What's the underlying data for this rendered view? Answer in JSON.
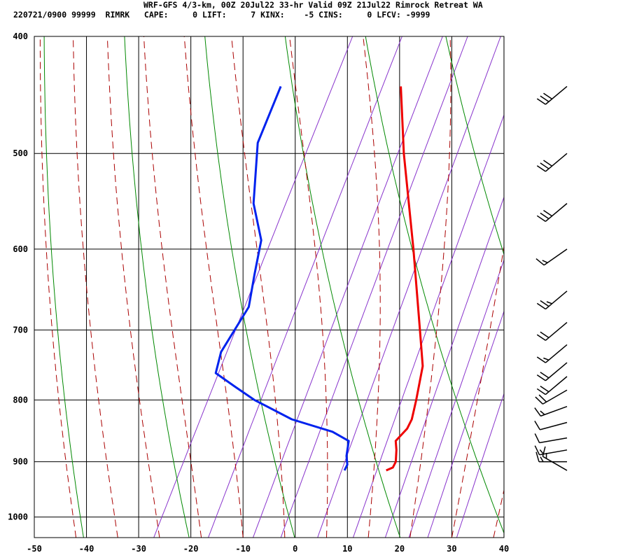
{
  "header": {
    "line1": "WRF-GFS 4/3-km, 00Z 20Jul22 33-hr Valid 09Z 21Jul22 Rimrock Retreat WA",
    "line2": "220721/0900 99999  RIMRK   CAPE:     0 LIFT:     7 KINX:    -5 CINS:     0 LFCV: -9999"
  },
  "colors": {
    "temperature": "#ee0000",
    "dewpoint": "#0022ee",
    "dry_adiabat": "#008800",
    "moist_adiabat": "#aa0000",
    "mixing_ratio": "#8833cc",
    "grid": "#000000",
    "barb": "#000000"
  },
  "chart_data": {
    "type": "skew-t",
    "x_ticks": [
      "-50",
      "-40",
      "-30",
      "-20",
      "-10",
      "0",
      "10",
      "20",
      "30",
      "40"
    ],
    "y_ticks": [
      "400",
      "500",
      "600",
      "700",
      "800",
      "900",
      "1000"
    ],
    "xlim": [
      -50,
      40
    ],
    "ylim": [
      1040,
      400
    ],
    "pressure_scale": "log",
    "grid": true,
    "series": [
      {
        "key": "temperature",
        "points": [
          [
            440,
            -23
          ],
          [
            500,
            -16
          ],
          [
            600,
            -5
          ],
          [
            700,
            4
          ],
          [
            750,
            8
          ],
          [
            800,
            10
          ],
          [
            830,
            11
          ],
          [
            845,
            11
          ],
          [
            865,
            10
          ],
          [
            880,
            11
          ],
          [
            900,
            12
          ],
          [
            910,
            12
          ],
          [
            915,
            11
          ]
        ]
      },
      {
        "key": "dewpoint",
        "points": [
          [
            440,
            -46
          ],
          [
            490,
            -45
          ],
          [
            550,
            -40
          ],
          [
            590,
            -35
          ],
          [
            630,
            -33
          ],
          [
            670,
            -31
          ],
          [
            730,
            -32
          ],
          [
            760,
            -31
          ],
          [
            780,
            -26
          ],
          [
            800,
            -21
          ],
          [
            830,
            -12
          ],
          [
            850,
            -3
          ],
          [
            865,
            1
          ],
          [
            890,
            2
          ],
          [
            905,
            3
          ],
          [
            915,
            3
          ]
        ]
      }
    ],
    "wind_barbs": [
      {
        "p": 440,
        "dir": 230,
        "kt": 30
      },
      {
        "p": 500,
        "dir": 230,
        "kt": 30
      },
      {
        "p": 550,
        "dir": 230,
        "kt": 30
      },
      {
        "p": 600,
        "dir": 235,
        "kt": 15
      },
      {
        "p": 650,
        "dir": 230,
        "kt": 25
      },
      {
        "p": 690,
        "dir": 230,
        "kt": 20
      },
      {
        "p": 720,
        "dir": 230,
        "kt": 15
      },
      {
        "p": 745,
        "dir": 230,
        "kt": 20
      },
      {
        "p": 765,
        "dir": 230,
        "kt": 20
      },
      {
        "p": 785,
        "dir": 240,
        "kt": 20
      },
      {
        "p": 810,
        "dir": 250,
        "kt": 15
      },
      {
        "p": 835,
        "dir": 255,
        "kt": 10
      },
      {
        "p": 860,
        "dir": 260,
        "kt": 10
      },
      {
        "p": 880,
        "dir": 260,
        "kt": 15
      },
      {
        "p": 900,
        "dir": 270,
        "kt": 15
      },
      {
        "p": 915,
        "dir": 300,
        "kt": 15
      }
    ]
  }
}
